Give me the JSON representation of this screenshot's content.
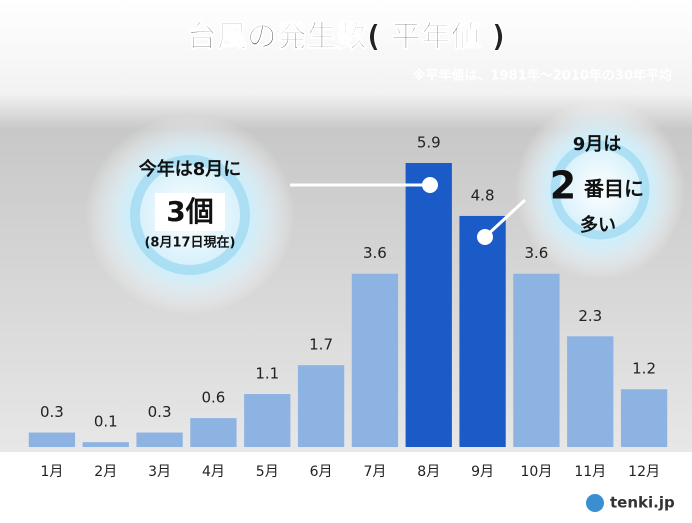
{
  "chart_data": {
    "type": "bar",
    "title": "台風の発生数( 平年値 )",
    "subtitle": "※平年値は、1981年～2010年の30年平均",
    "categories": [
      "1月",
      "2月",
      "3月",
      "4月",
      "5月",
      "6月",
      "7月",
      "8月",
      "9月",
      "10月",
      "11月",
      "12月"
    ],
    "values": [
      0.3,
      0.1,
      0.3,
      0.6,
      1.1,
      1.7,
      3.6,
      5.9,
      4.8,
      3.6,
      2.3,
      1.2
    ],
    "colors": [
      "#8db3e2",
      "#8db3e2",
      "#8db3e2",
      "#8db3e2",
      "#8db3e2",
      "#8db3e2",
      "#8db3e2",
      "#1a5bc8",
      "#1a5bc8",
      "#8db3e2",
      "#8db3e2",
      "#8db3e2"
    ],
    "annotations": {
      "left": [
        "今年は8月に",
        "3個",
        "(8月17日現在)"
      ],
      "right": [
        "9月は",
        "2",
        "番目に",
        "多い"
      ]
    },
    "logo": "tenki.jp"
  }
}
